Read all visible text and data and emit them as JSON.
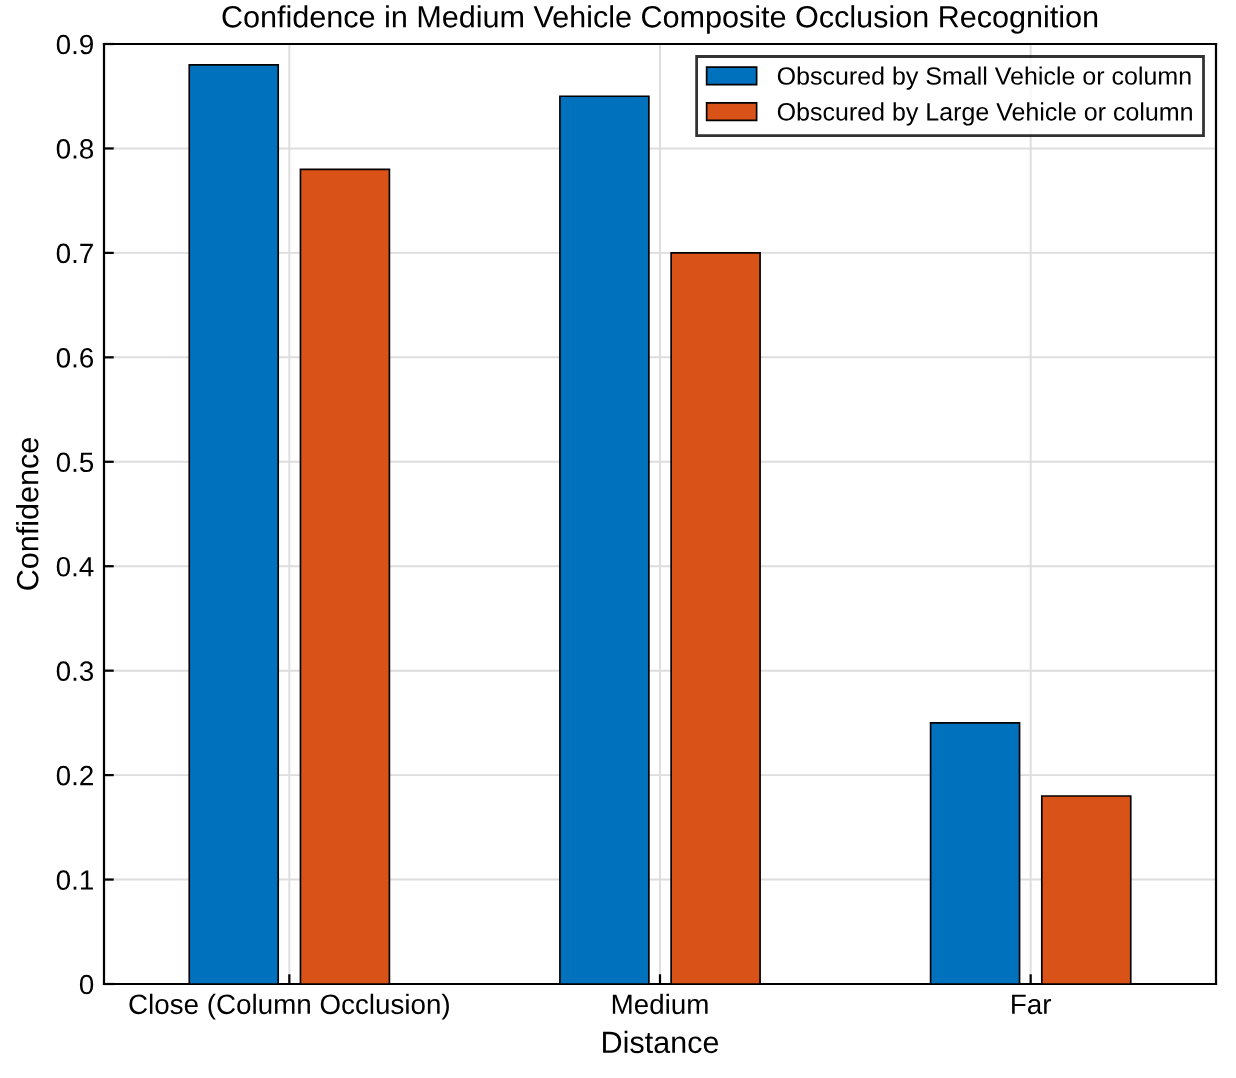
{
  "chart_data": {
    "type": "bar",
    "title": "Confidence in Medium Vehicle Composite Occlusion Recognition",
    "xlabel": "Distance",
    "ylabel": "Confidence",
    "categories": [
      "Close (Column Occlusion)",
      "Medium",
      "Far"
    ],
    "series": [
      {
        "name": "Obscured by Small Vehicle or column",
        "color": "#0072bd",
        "values": [
          0.88,
          0.85,
          0.25
        ]
      },
      {
        "name": "Obscured by Large Vehicle or column",
        "color": "#d95319",
        "values": [
          0.78,
          0.7,
          0.18
        ]
      }
    ],
    "ylim": [
      0,
      0.9
    ],
    "yticks": [
      0,
      0.1,
      0.2,
      0.3,
      0.4,
      0.5,
      0.6,
      0.7,
      0.8,
      0.9
    ],
    "grid": true,
    "legend": "top right"
  }
}
